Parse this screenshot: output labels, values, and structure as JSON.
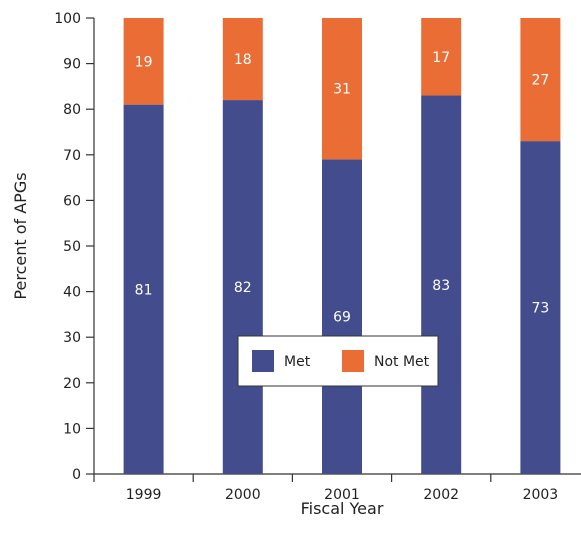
{
  "chart_data": {
    "type": "bar",
    "stacked": true,
    "categories": [
      "1999",
      "2000",
      "2001",
      "2002",
      "2003"
    ],
    "series": [
      {
        "name": "Met",
        "values": [
          81,
          82,
          69,
          83,
          73
        ],
        "color": "#434C8C"
      },
      {
        "name": "Not Met",
        "values": [
          19,
          18,
          31,
          17,
          27
        ],
        "color": "#EB6D36"
      }
    ],
    "data_labels": {
      "Met": [
        "81",
        "82",
        "69",
        "83",
        "73"
      ],
      "Not Met": [
        "19",
        "18",
        "31",
        "17",
        "27"
      ]
    },
    "xlabel": "Fiscal Year",
    "ylabel": "Percent of APGs",
    "ylim": [
      0,
      100
    ],
    "yticks": [
      0,
      10,
      20,
      30,
      40,
      50,
      60,
      70,
      80,
      90,
      100
    ],
    "grid": false,
    "legend": {
      "placement": "center",
      "entries": [
        "Met",
        "Not Met"
      ]
    }
  }
}
